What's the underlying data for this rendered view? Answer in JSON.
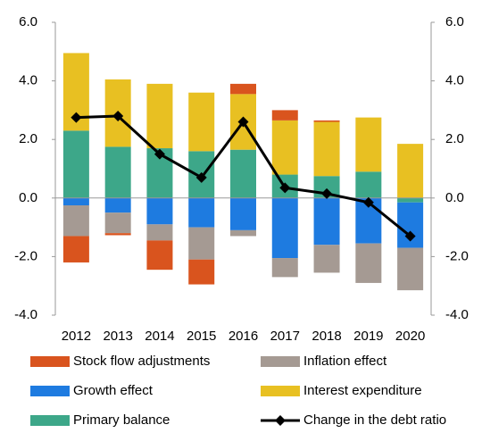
{
  "chart_data": {
    "type": "bar",
    "stacked": true,
    "categories": [
      "2012",
      "2013",
      "2014",
      "2015",
      "2016",
      "2017",
      "2018",
      "2019",
      "2020"
    ],
    "series": [
      {
        "name": "Stock flow adjustments",
        "color": "#d9541e",
        "values": [
          -0.9,
          -0.07,
          -1.0,
          -0.85,
          0.35,
          0.35,
          0.05,
          0,
          0
        ]
      },
      {
        "name": "Inflation effect",
        "color": "#a59a93",
        "values": [
          -1.05,
          -0.7,
          -0.55,
          -1.1,
          -0.2,
          -0.65,
          -0.95,
          -1.35,
          -1.45
        ]
      },
      {
        "name": "Growth effect",
        "color": "#1e7be0",
        "values": [
          -0.25,
          -0.5,
          -0.9,
          -1.0,
          -1.1,
          -2.05,
          -1.6,
          -1.55,
          -1.55
        ]
      },
      {
        "name": "Interest expenditure",
        "color": "#e8c022",
        "values": [
          2.65,
          2.3,
          2.2,
          2.0,
          1.9,
          1.85,
          1.85,
          1.85,
          1.85
        ]
      },
      {
        "name": "Primary balance",
        "color": "#3da789",
        "values": [
          2.3,
          1.75,
          1.7,
          1.6,
          1.65,
          0.8,
          0.75,
          0.9,
          -0.15
        ]
      },
      {
        "name": "Change in the debt ratio",
        "type": "line",
        "color": "#000000",
        "values": [
          2.75,
          2.8,
          1.5,
          0.7,
          2.6,
          0.35,
          0.15,
          -0.15,
          -1.3
        ]
      }
    ],
    "ylim": [
      -4,
      6
    ],
    "yticks": [
      {
        "value": -4,
        "label": "-4.0"
      },
      {
        "value": -2,
        "label": "-2.0"
      },
      {
        "value": 0,
        "label": "0.0"
      },
      {
        "value": 2,
        "label": "2.0"
      },
      {
        "value": 4,
        "label": "4.0"
      },
      {
        "value": 6,
        "label": "6.0"
      }
    ],
    "y2lim": [
      -4,
      6
    ],
    "y2ticks": [
      {
        "value": -4,
        "label": "-4.0"
      },
      {
        "value": -2,
        "label": "-2.0"
      },
      {
        "value": 0,
        "label": "0.0"
      },
      {
        "value": 2,
        "label": "2.0"
      },
      {
        "value": 4,
        "label": "4.0"
      },
      {
        "value": 6,
        "label": "6.0"
      }
    ],
    "legend": "bottom"
  }
}
